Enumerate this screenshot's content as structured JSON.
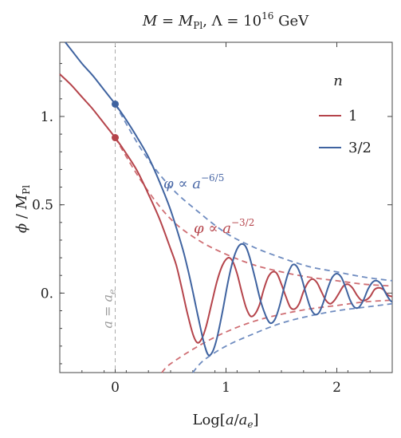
{
  "chart_data": {
    "type": "line",
    "title": "M = M_Pl, Λ = 10^16 GeV",
    "title_parts": {
      "m": "M",
      "eq": " = ",
      "mpl": "M",
      "mpl_sub": "Pl",
      "sep": ", Λ = 10",
      "exp": "16",
      "unit": " GeV"
    },
    "xlabel": "Log[a/a_e]",
    "xlabel_parts": {
      "a": "Log[",
      "b": "a",
      "c": "/",
      "d": "a",
      "e_sub": "e",
      "f": "]"
    },
    "ylabel": "φ/M_Pl",
    "ylabel_parts": {
      "phi": "ϕ",
      "slash": " / ",
      "m": "M",
      "sub": "Pl"
    },
    "xlim": [
      -0.5,
      2.5
    ],
    "ylim": [
      -0.45,
      1.42
    ],
    "x_ticks": [
      {
        "value": 0,
        "label": "0"
      },
      {
        "value": 1,
        "label": "1"
      },
      {
        "value": 2,
        "label": "2"
      }
    ],
    "y_ticks": [
      {
        "value": 0,
        "label": "0."
      },
      {
        "value": 0.5,
        "label": "0.5"
      },
      {
        "value": 1,
        "label": "1."
      }
    ],
    "grid": false,
    "legend": {
      "title": "n",
      "placement": "top-right",
      "entries": [
        {
          "label": "1",
          "color": "#b5444b"
        },
        {
          "label": "3/2",
          "color": "#3f63a0"
        }
      ]
    },
    "vertical_marker": {
      "x": 0,
      "label": "a = a_e",
      "label_parts": {
        "a": "a",
        "eq": " = ",
        "ae": "a",
        "sub": "e"
      }
    },
    "series": [
      {
        "name": "1",
        "color": "#b5444b",
        "envelope_exponent": -1.5,
        "envelope_label": "φ ∝ a^−3/2",
        "envelope_label_parts": {
          "phi": "φ",
          "prop": " ∝ ",
          "a": "a",
          "exp": "−3/2"
        },
        "points": [
          [
            -0.5,
            1.24
          ],
          [
            -0.4,
            1.18
          ],
          [
            -0.3,
            1.11
          ],
          [
            -0.2,
            1.04
          ],
          [
            -0.1,
            0.96
          ],
          [
            0,
            0.88
          ],
          [
            0.1,
            0.79
          ],
          [
            0.2,
            0.69
          ],
          [
            0.3,
            0.56
          ],
          [
            0.4,
            0.42
          ],
          [
            0.5,
            0.25
          ],
          [
            0.55,
            0.16
          ],
          [
            0.6,
            0.03
          ],
          [
            0.65,
            -0.11
          ],
          [
            0.7,
            -0.23
          ],
          [
            0.74,
            -0.28
          ],
          [
            0.78,
            -0.26
          ],
          [
            0.82,
            -0.19
          ],
          [
            0.87,
            -0.06
          ],
          [
            0.92,
            0.07
          ],
          [
            0.97,
            0.16
          ],
          [
            1.02,
            0.2
          ],
          [
            1.06,
            0.18
          ],
          [
            1.1,
            0.11
          ],
          [
            1.14,
            0.01
          ],
          [
            1.18,
            -0.08
          ],
          [
            1.22,
            -0.13
          ],
          [
            1.26,
            -0.12
          ],
          [
            1.3,
            -0.07
          ],
          [
            1.34,
            0.02
          ],
          [
            1.38,
            0.09
          ],
          [
            1.42,
            0.12
          ],
          [
            1.46,
            0.11
          ],
          [
            1.5,
            0.05
          ],
          [
            1.54,
            -0.02
          ],
          [
            1.58,
            -0.08
          ],
          [
            1.62,
            -0.09
          ],
          [
            1.66,
            -0.06
          ],
          [
            1.7,
            0.01
          ],
          [
            1.74,
            0.06
          ],
          [
            1.78,
            0.08
          ],
          [
            1.82,
            0.06
          ],
          [
            1.86,
            0.01
          ],
          [
            1.9,
            -0.04
          ],
          [
            1.94,
            -0.06
          ],
          [
            1.98,
            -0.04
          ],
          [
            2.02,
            0.0
          ],
          [
            2.06,
            0.04
          ],
          [
            2.1,
            0.05
          ],
          [
            2.14,
            0.03
          ],
          [
            2.18,
            -0.01
          ],
          [
            2.22,
            -0.04
          ],
          [
            2.26,
            -0.04
          ],
          [
            2.3,
            -0.02
          ],
          [
            2.34,
            0.02
          ],
          [
            2.38,
            0.03
          ],
          [
            2.42,
            0.02
          ],
          [
            2.46,
            -0.01
          ],
          [
            2.5,
            -0.02
          ]
        ],
        "envelope_upper": [
          [
            0,
            0.88
          ],
          [
            0.25,
            0.62
          ],
          [
            0.5,
            0.42
          ],
          [
            0.75,
            0.3
          ],
          [
            1.0,
            0.22
          ],
          [
            1.25,
            0.16
          ],
          [
            1.5,
            0.12
          ],
          [
            1.75,
            0.09
          ],
          [
            2.0,
            0.07
          ],
          [
            2.25,
            0.05
          ],
          [
            2.5,
            0.04
          ]
        ],
        "envelope_lower": [
          [
            0.42,
            -0.45
          ],
          [
            0.5,
            -0.4
          ],
          [
            0.75,
            -0.3
          ],
          [
            1.0,
            -0.22
          ],
          [
            1.25,
            -0.16
          ],
          [
            1.5,
            -0.12
          ],
          [
            1.75,
            -0.09
          ],
          [
            2.0,
            -0.07
          ],
          [
            2.25,
            -0.05
          ],
          [
            2.5,
            -0.04
          ]
        ]
      },
      {
        "name": "3/2",
        "color": "#3f63a0",
        "envelope_exponent": -1.2,
        "envelope_label": "φ ∝ a^−6/5",
        "envelope_label_parts": {
          "phi": "φ",
          "prop": " ∝ ",
          "a": "a",
          "exp": "−6/5"
        },
        "points": [
          [
            -0.45,
            1.42
          ],
          [
            -0.4,
            1.38
          ],
          [
            -0.3,
            1.3
          ],
          [
            -0.2,
            1.23
          ],
          [
            -0.1,
            1.15
          ],
          [
            0,
            1.07
          ],
          [
            0.1,
            0.98
          ],
          [
            0.2,
            0.88
          ],
          [
            0.3,
            0.77
          ],
          [
            0.4,
            0.63
          ],
          [
            0.5,
            0.47
          ],
          [
            0.6,
            0.27
          ],
          [
            0.65,
            0.15
          ],
          [
            0.7,
            0.01
          ],
          [
            0.75,
            -0.14
          ],
          [
            0.8,
            -0.28
          ],
          [
            0.84,
            -0.35
          ],
          [
            0.88,
            -0.33
          ],
          [
            0.92,
            -0.25
          ],
          [
            0.97,
            -0.1
          ],
          [
            1.02,
            0.07
          ],
          [
            1.07,
            0.2
          ],
          [
            1.12,
            0.27
          ],
          [
            1.17,
            0.27
          ],
          [
            1.21,
            0.21
          ],
          [
            1.26,
            0.09
          ],
          [
            1.31,
            -0.04
          ],
          [
            1.36,
            -0.13
          ],
          [
            1.4,
            -0.17
          ],
          [
            1.44,
            -0.15
          ],
          [
            1.48,
            -0.08
          ],
          [
            1.52,
            0.02
          ],
          [
            1.56,
            0.11
          ],
          [
            1.6,
            0.16
          ],
          [
            1.64,
            0.15
          ],
          [
            1.68,
            0.09
          ],
          [
            1.72,
            0.0
          ],
          [
            1.76,
            -0.08
          ],
          [
            1.8,
            -0.12
          ],
          [
            1.84,
            -0.11
          ],
          [
            1.88,
            -0.05
          ],
          [
            1.92,
            0.03
          ],
          [
            1.96,
            0.09
          ],
          [
            2.0,
            0.11
          ],
          [
            2.04,
            0.09
          ],
          [
            2.08,
            0.03
          ],
          [
            2.12,
            -0.04
          ],
          [
            2.16,
            -0.08
          ],
          [
            2.2,
            -0.08
          ],
          [
            2.24,
            -0.04
          ],
          [
            2.28,
            0.02
          ],
          [
            2.32,
            0.06
          ],
          [
            2.36,
            0.07
          ],
          [
            2.4,
            0.05
          ],
          [
            2.44,
            0.0
          ],
          [
            2.48,
            -0.04
          ],
          [
            2.5,
            -0.05
          ]
        ],
        "envelope_upper": [
          [
            0,
            1.07
          ],
          [
            0.25,
            0.8
          ],
          [
            0.5,
            0.6
          ],
          [
            0.75,
            0.46
          ],
          [
            1.0,
            0.34
          ],
          [
            1.25,
            0.26
          ],
          [
            1.5,
            0.2
          ],
          [
            1.75,
            0.15
          ],
          [
            2.0,
            0.12
          ],
          [
            2.25,
            0.09
          ],
          [
            2.5,
            0.07
          ]
        ],
        "envelope_lower": [
          [
            0.7,
            -0.45
          ],
          [
            0.8,
            -0.38
          ],
          [
            1.0,
            -0.3
          ],
          [
            1.25,
            -0.23
          ],
          [
            1.5,
            -0.17
          ],
          [
            1.75,
            -0.13
          ],
          [
            2.0,
            -0.1
          ],
          [
            2.25,
            -0.08
          ],
          [
            2.5,
            -0.06
          ]
        ]
      }
    ],
    "markers": [
      {
        "series": "1",
        "x": 0,
        "y": 0.88
      },
      {
        "series": "3/2",
        "x": 0,
        "y": 1.07
      }
    ]
  }
}
